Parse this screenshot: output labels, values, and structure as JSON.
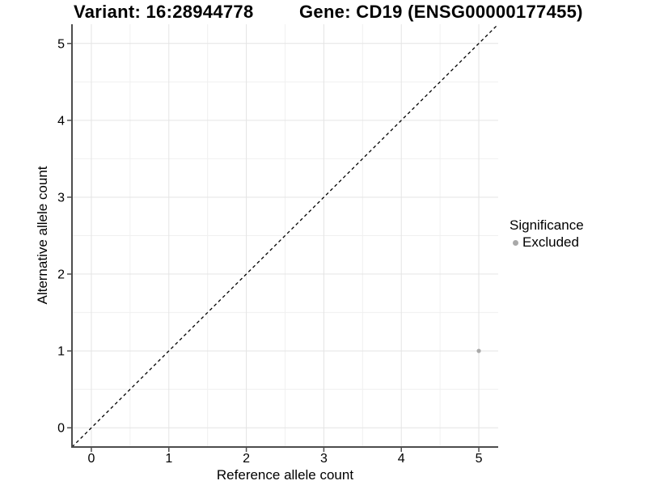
{
  "chart_data": {
    "type": "scatter",
    "titles": {
      "variant": "Variant: 16:28944778",
      "gene": "Gene: CD19 (ENSG00000177455)"
    },
    "xlabel": "Reference allele count",
    "ylabel": "Alternative allele count",
    "xlim": [
      -0.25,
      5.25
    ],
    "ylim": [
      -0.25,
      5.25
    ],
    "xticks": [
      0,
      1,
      2,
      3,
      4,
      5
    ],
    "yticks": [
      0,
      1,
      2,
      3,
      4,
      5
    ],
    "minor_grid_step": 0.5,
    "grid": "major+minor",
    "identity_line": {
      "style": "dashed",
      "color": "#000000",
      "from": [
        -0.25,
        -0.25
      ],
      "to": [
        5.25,
        5.25
      ]
    },
    "series": [
      {
        "name": "Excluded",
        "color": "#A9A9A9",
        "points": [
          {
            "x": 5,
            "y": 1
          }
        ]
      }
    ],
    "legend": {
      "title": "Significance",
      "position": "right",
      "items": [
        {
          "label": "Excluded",
          "color": "#A9A9A9",
          "marker": "circle"
        }
      ]
    },
    "colors": {
      "excluded_point": "#A9A9A9",
      "axis_line": "#4D4D4D",
      "major_grid": "#E4E4E4",
      "minor_grid": "#F0F0F0",
      "text": "#000000"
    }
  }
}
